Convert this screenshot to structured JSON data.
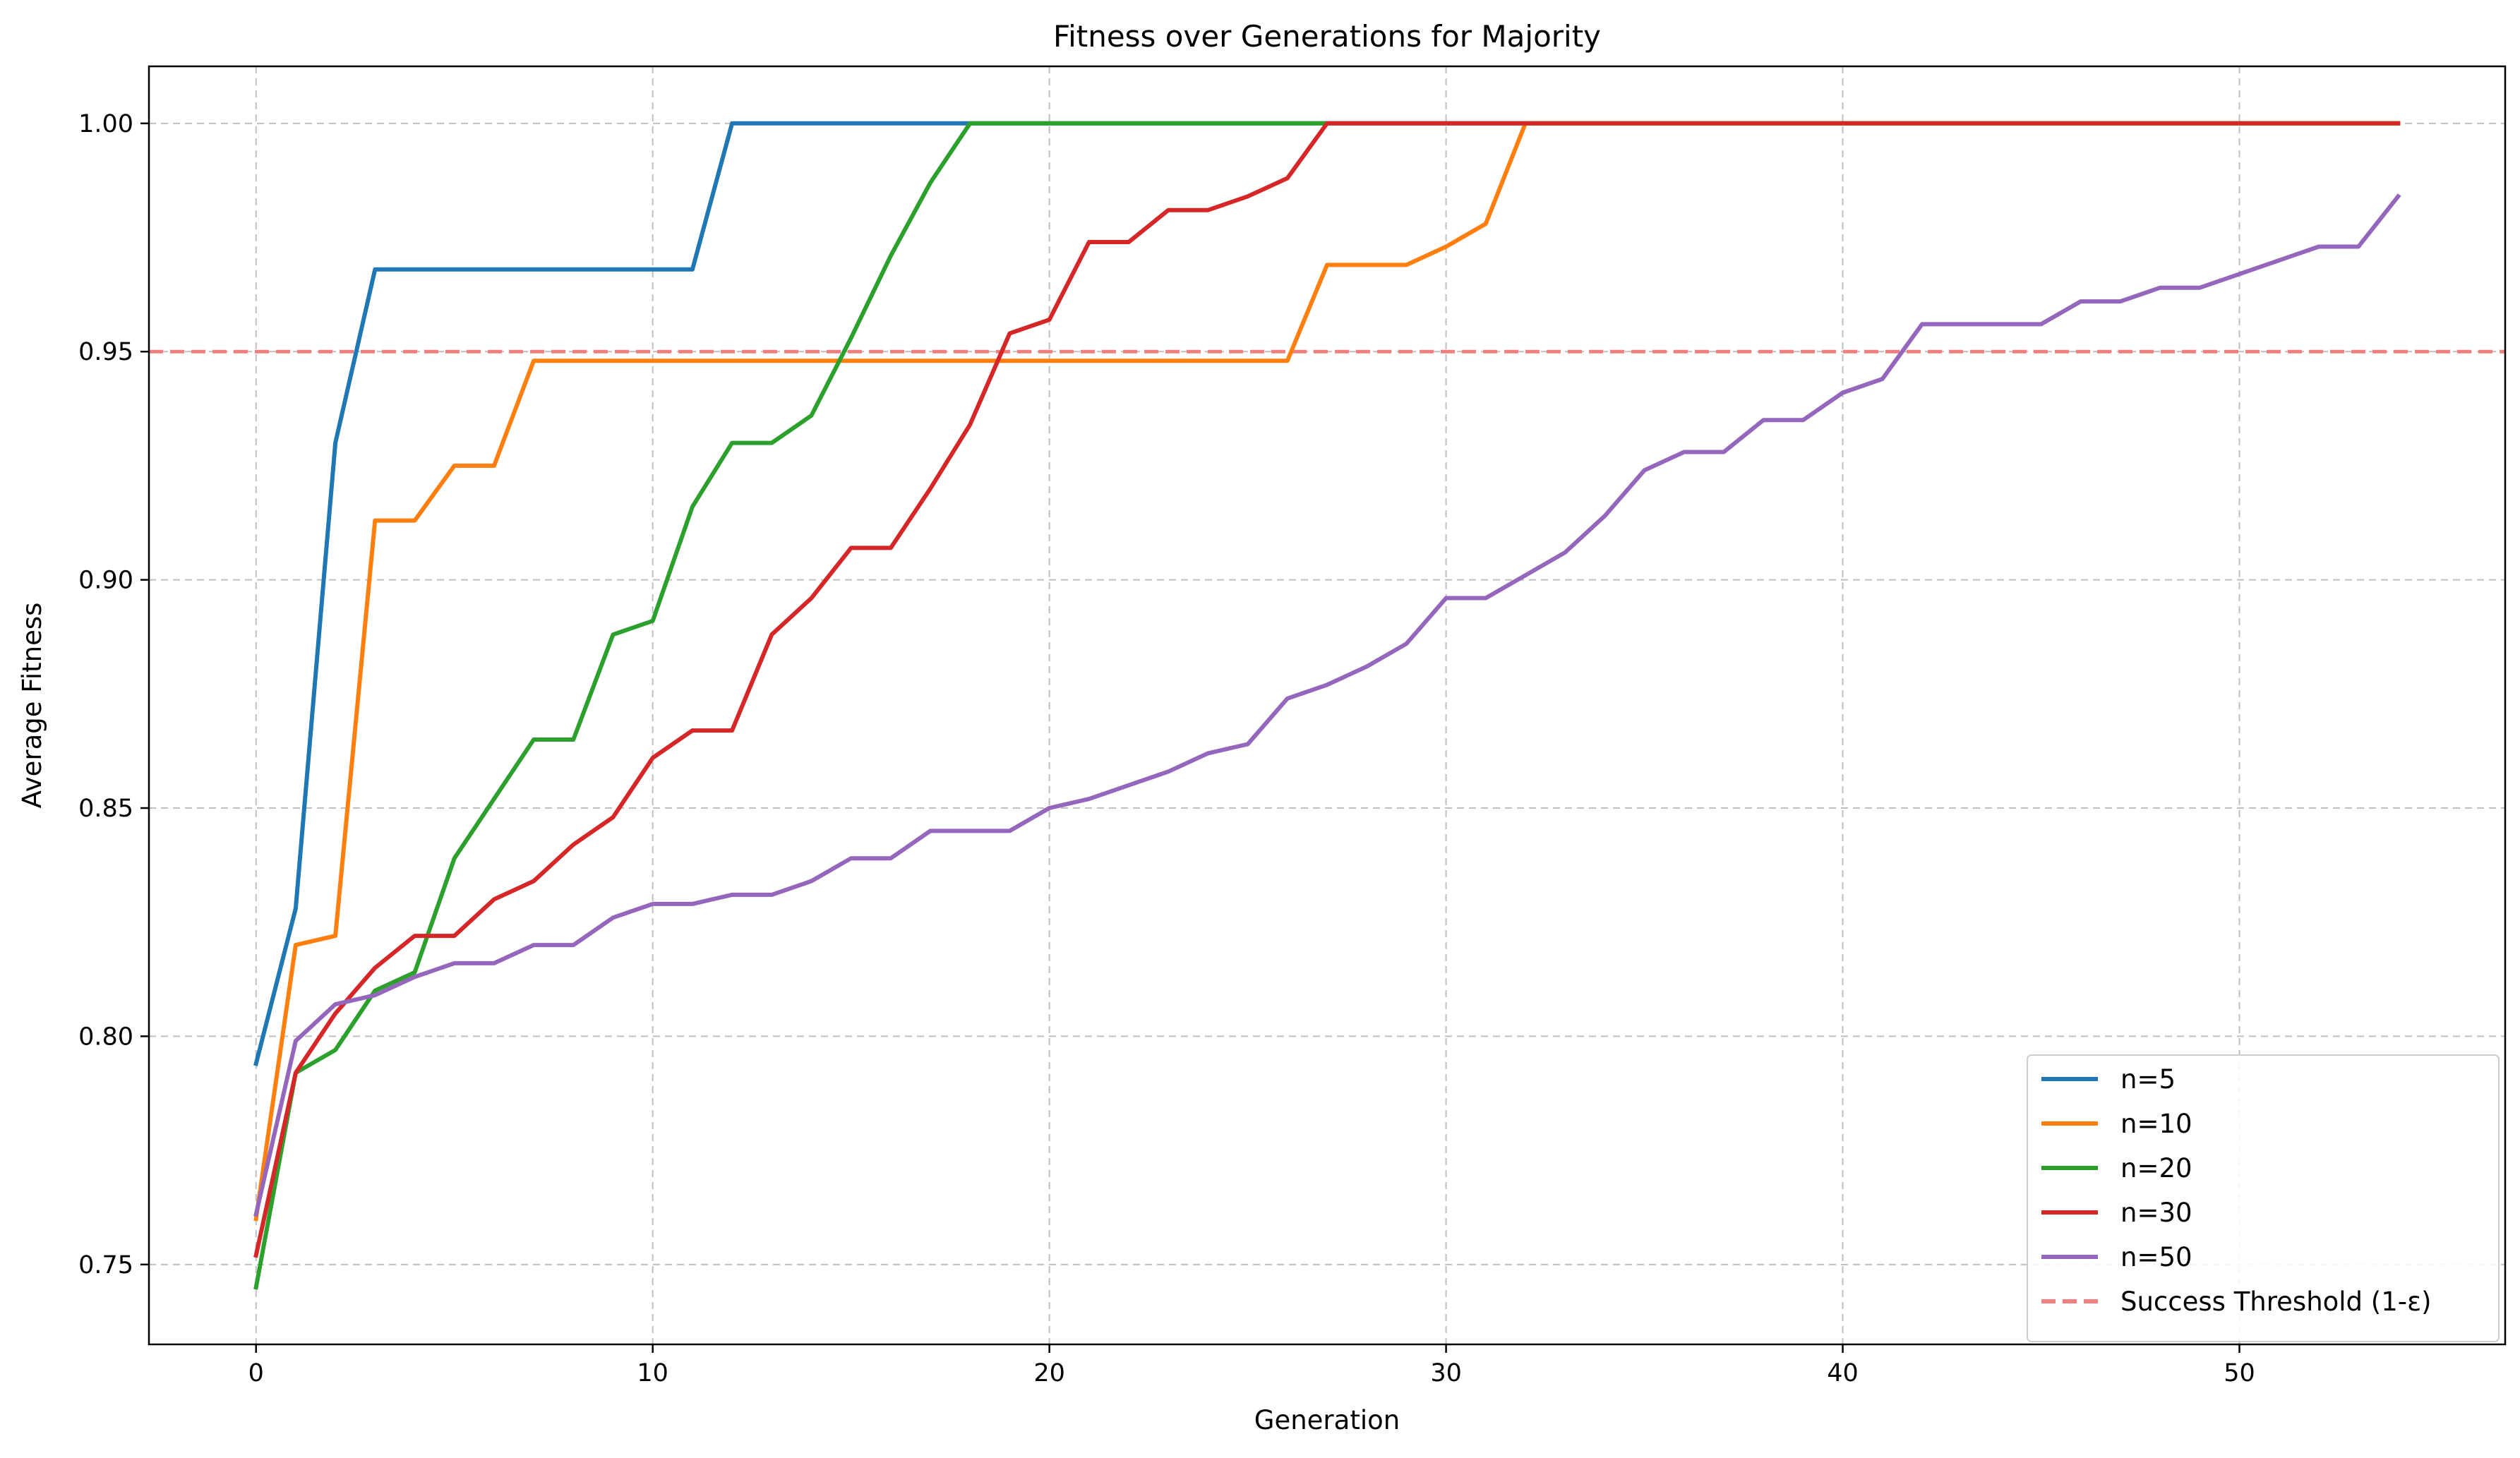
{
  "chart_data": {
    "type": "line",
    "title": "Fitness over Generations for Majority",
    "xlabel": "Generation",
    "ylabel": "Average Fitness",
    "xlim": [
      -2.7,
      56.7
    ],
    "ylim": [
      0.7325,
      1.0125
    ],
    "xticks": [
      0,
      10,
      20,
      30,
      40,
      50
    ],
    "xtick_labels": [
      "0",
      "10",
      "20",
      "30",
      "40",
      "50"
    ],
    "yticks": [
      0.75,
      0.8,
      0.85,
      0.9,
      0.95,
      1.0
    ],
    "ytick_labels": [
      "0.75",
      "0.80",
      "0.85",
      "0.90",
      "0.95",
      "1.00"
    ],
    "grid": true,
    "legend_position": "lower-right",
    "threshold": {
      "label": "Success Threshold (1-ε)",
      "y": 0.95,
      "color": "#f08080",
      "style": "dashed"
    },
    "series": [
      {
        "name": "n=5",
        "color": "#1f77b4",
        "x": [
          0,
          1,
          2,
          3,
          4,
          5,
          6,
          7,
          8,
          9,
          10,
          11,
          12,
          13,
          14,
          15,
          16,
          17,
          18,
          19,
          20,
          21,
          22,
          23,
          24,
          25,
          26,
          27,
          28,
          29,
          30,
          31,
          32,
          33,
          34,
          35,
          36,
          37,
          38,
          39,
          40,
          41,
          42,
          43,
          44,
          45,
          46,
          47,
          48,
          49,
          50,
          51,
          52,
          53,
          54
        ],
        "y": [
          0.794,
          0.828,
          0.93,
          0.968,
          0.968,
          0.968,
          0.968,
          0.968,
          0.968,
          0.968,
          0.968,
          0.968,
          1.0,
          1.0,
          1.0,
          1.0,
          1.0,
          1.0,
          1.0,
          1.0,
          1.0,
          1.0,
          1.0,
          1.0,
          1.0,
          1.0,
          1.0,
          1.0,
          1.0,
          1.0,
          1.0,
          1.0,
          1.0,
          1.0,
          1.0,
          1.0,
          1.0,
          1.0,
          1.0,
          1.0,
          1.0,
          1.0,
          1.0,
          1.0,
          1.0,
          1.0,
          1.0,
          1.0,
          1.0,
          1.0,
          1.0,
          1.0,
          1.0,
          1.0,
          1.0
        ]
      },
      {
        "name": "n=10",
        "color": "#ff7f0e",
        "x": [
          0,
          1,
          2,
          3,
          4,
          5,
          6,
          7,
          8,
          9,
          10,
          11,
          12,
          13,
          14,
          15,
          16,
          17,
          18,
          19,
          20,
          21,
          22,
          23,
          24,
          25,
          26,
          27,
          28,
          29,
          30,
          31,
          32,
          33,
          34,
          35,
          36,
          37,
          38,
          39,
          40,
          41,
          42,
          43,
          44,
          45,
          46,
          47,
          48,
          49,
          50,
          51,
          52,
          53,
          54
        ],
        "y": [
          0.76,
          0.82,
          0.822,
          0.913,
          0.913,
          0.925,
          0.925,
          0.948,
          0.948,
          0.948,
          0.948,
          0.948,
          0.948,
          0.948,
          0.948,
          0.948,
          0.948,
          0.948,
          0.948,
          0.948,
          0.948,
          0.948,
          0.948,
          0.948,
          0.948,
          0.948,
          0.948,
          0.969,
          0.969,
          0.969,
          0.973,
          0.978,
          1.0,
          1.0,
          1.0,
          1.0,
          1.0,
          1.0,
          1.0,
          1.0,
          1.0,
          1.0,
          1.0,
          1.0,
          1.0,
          1.0,
          1.0,
          1.0,
          1.0,
          1.0,
          1.0,
          1.0,
          1.0,
          1.0,
          1.0
        ]
      },
      {
        "name": "n=20",
        "color": "#2ca02c",
        "x": [
          0,
          1,
          2,
          3,
          4,
          5,
          6,
          7,
          8,
          9,
          10,
          11,
          12,
          13,
          14,
          15,
          16,
          17,
          18,
          19,
          20,
          21,
          22,
          23,
          24,
          25,
          26,
          27,
          28,
          29,
          30,
          31,
          32,
          33,
          34,
          35,
          36,
          37,
          38,
          39,
          40,
          41,
          42,
          43,
          44,
          45,
          46,
          47,
          48,
          49,
          50,
          51,
          52,
          53,
          54
        ],
        "y": [
          0.745,
          0.792,
          0.797,
          0.81,
          0.814,
          0.839,
          0.852,
          0.865,
          0.865,
          0.888,
          0.891,
          0.916,
          0.93,
          0.93,
          0.936,
          0.953,
          0.971,
          0.987,
          1.0,
          1.0,
          1.0,
          1.0,
          1.0,
          1.0,
          1.0,
          1.0,
          1.0,
          1.0,
          1.0,
          1.0,
          1.0,
          1.0,
          1.0,
          1.0,
          1.0,
          1.0,
          1.0,
          1.0,
          1.0,
          1.0,
          1.0,
          1.0,
          1.0,
          1.0,
          1.0,
          1.0,
          1.0,
          1.0,
          1.0,
          1.0,
          1.0,
          1.0,
          1.0,
          1.0,
          1.0
        ]
      },
      {
        "name": "n=30",
        "color": "#d62728",
        "x": [
          0,
          1,
          2,
          3,
          4,
          5,
          6,
          7,
          8,
          9,
          10,
          11,
          12,
          13,
          14,
          15,
          16,
          17,
          18,
          19,
          20,
          21,
          22,
          23,
          24,
          25,
          26,
          27,
          28,
          29,
          30,
          31,
          32,
          33,
          34,
          35,
          36,
          37,
          38,
          39,
          40,
          41,
          42,
          43,
          44,
          45,
          46,
          47,
          48,
          49,
          50,
          51,
          52,
          53,
          54
        ],
        "y": [
          0.752,
          0.792,
          0.805,
          0.815,
          0.822,
          0.822,
          0.83,
          0.834,
          0.842,
          0.848,
          0.861,
          0.867,
          0.867,
          0.888,
          0.896,
          0.907,
          0.907,
          0.92,
          0.934,
          0.954,
          0.957,
          0.974,
          0.974,
          0.981,
          0.981,
          0.984,
          0.988,
          1.0,
          1.0,
          1.0,
          1.0,
          1.0,
          1.0,
          1.0,
          1.0,
          1.0,
          1.0,
          1.0,
          1.0,
          1.0,
          1.0,
          1.0,
          1.0,
          1.0,
          1.0,
          1.0,
          1.0,
          1.0,
          1.0,
          1.0,
          1.0,
          1.0,
          1.0,
          1.0,
          1.0
        ]
      },
      {
        "name": "n=50",
        "color": "#9467bd",
        "x": [
          0,
          1,
          2,
          3,
          4,
          5,
          6,
          7,
          8,
          9,
          10,
          11,
          12,
          13,
          14,
          15,
          16,
          17,
          18,
          19,
          20,
          21,
          22,
          23,
          24,
          25,
          26,
          27,
          28,
          29,
          30,
          31,
          32,
          33,
          34,
          35,
          36,
          37,
          38,
          39,
          40,
          41,
          42,
          43,
          44,
          45,
          46,
          47,
          48,
          49,
          50,
          51,
          52,
          53,
          54
        ],
        "y": [
          0.761,
          0.799,
          0.807,
          0.809,
          0.813,
          0.816,
          0.816,
          0.82,
          0.82,
          0.826,
          0.829,
          0.829,
          0.831,
          0.831,
          0.834,
          0.839,
          0.839,
          0.845,
          0.845,
          0.845,
          0.85,
          0.852,
          0.855,
          0.858,
          0.862,
          0.864,
          0.874,
          0.877,
          0.881,
          0.886,
          0.896,
          0.896,
          0.901,
          0.906,
          0.914,
          0.924,
          0.928,
          0.928,
          0.935,
          0.935,
          0.941,
          0.944,
          0.956,
          0.956,
          0.956,
          0.956,
          0.961,
          0.961,
          0.964,
          0.964,
          0.967,
          0.97,
          0.973,
          0.973,
          0.984
        ]
      }
    ]
  }
}
